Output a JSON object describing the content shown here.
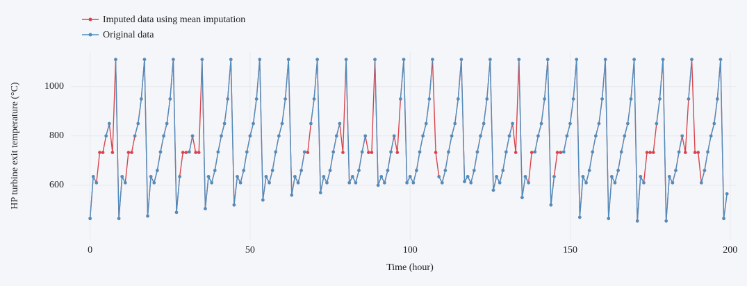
{
  "chart_data": {
    "type": "line",
    "x_label": "Time (hour)",
    "y_label": "HP turbine exit temperature (°C)",
    "x": [
      0,
      1,
      2,
      3,
      4,
      5,
      6,
      7,
      8,
      9,
      10,
      11,
      12,
      13,
      14,
      15,
      16,
      17,
      18,
      19,
      20,
      21,
      22,
      23,
      24,
      25,
      26,
      27,
      28,
      29,
      30,
      31,
      32,
      33,
      34,
      35,
      36,
      37,
      38,
      39,
      40,
      41,
      42,
      43,
      44,
      45,
      46,
      47,
      48,
      49,
      50,
      51,
      52,
      53,
      54,
      55,
      56,
      57,
      58,
      59,
      60,
      61,
      62,
      63,
      64,
      65,
      66,
      67,
      68,
      69,
      70,
      71,
      72,
      73,
      74,
      75,
      76,
      77,
      78,
      79,
      80,
      81,
      82,
      83,
      84,
      85,
      86,
      87,
      88,
      89,
      90,
      91,
      92,
      93,
      94,
      95,
      96,
      97,
      98,
      99,
      100,
      101,
      102,
      103,
      104,
      105,
      106,
      107,
      108,
      109,
      110,
      111,
      112,
      113,
      114,
      115,
      116,
      117,
      118,
      119,
      120,
      121,
      122,
      123,
      124,
      125,
      126,
      127,
      128,
      129,
      130,
      131,
      132,
      133,
      134,
      135,
      136,
      137,
      138,
      139,
      140,
      141,
      142,
      143,
      144,
      145,
      146,
      147,
      148,
      149,
      150,
      151,
      152,
      153,
      154,
      155,
      156,
      157,
      158,
      159,
      160,
      161,
      162,
      163,
      164,
      165,
      166,
      167,
      168,
      169,
      170,
      171,
      172,
      173,
      174,
      175,
      176,
      177,
      178,
      179,
      180,
      181,
      182,
      183,
      184,
      185,
      186,
      187,
      188,
      189,
      190,
      191,
      192,
      193,
      194,
      195,
      196,
      197,
      198,
      199
    ],
    "series": [
      {
        "name": "Imputed data using mean imputation",
        "color": "#d9434b",
        "values": [
          465,
          635,
          610,
          733,
          733,
          800,
          850,
          733,
          1110,
          465,
          635,
          610,
          733,
          733,
          800,
          850,
          950,
          1110,
          475,
          635,
          610,
          660,
          735,
          800,
          850,
          950,
          1110,
          490,
          635,
          733,
          733,
          735,
          800,
          733,
          733,
          1110,
          505,
          635,
          610,
          660,
          735,
          800,
          850,
          950,
          1110,
          520,
          635,
          610,
          660,
          735,
          800,
          850,
          950,
          1110,
          540,
          635,
          610,
          660,
          735,
          800,
          850,
          950,
          1110,
          560,
          635,
          610,
          660,
          735,
          733,
          850,
          950,
          1110,
          570,
          635,
          610,
          660,
          735,
          800,
          850,
          733,
          1110,
          610,
          635,
          610,
          660,
          735,
          800,
          733,
          733,
          1110,
          600,
          635,
          610,
          660,
          735,
          800,
          733,
          950,
          1110,
          610,
          635,
          610,
          660,
          735,
          800,
          850,
          950,
          1110,
          733,
          635,
          610,
          660,
          735,
          800,
          850,
          950,
          1110,
          615,
          635,
          610,
          660,
          735,
          800,
          850,
          950,
          1110,
          580,
          635,
          610,
          660,
          735,
          800,
          850,
          733,
          1110,
          550,
          635,
          610,
          733,
          735,
          800,
          850,
          950,
          1110,
          520,
          635,
          733,
          733,
          735,
          800,
          850,
          950,
          1110,
          470,
          635,
          610,
          660,
          735,
          800,
          850,
          950,
          1110,
          465,
          635,
          610,
          660,
          735,
          800,
          850,
          950,
          1110,
          455,
          635,
          610,
          733,
          733,
          733,
          850,
          950,
          1110,
          455,
          635,
          610,
          660,
          735,
          800,
          733,
          950,
          1110,
          733,
          733,
          610,
          660,
          735,
          800,
          850,
          950,
          1110,
          465,
          565
        ]
      },
      {
        "name": "Original data",
        "color": "#4f8dbd",
        "values": [
          465,
          635,
          610,
          null,
          null,
          800,
          850,
          null,
          1110,
          465,
          635,
          610,
          null,
          null,
          800,
          850,
          950,
          1110,
          475,
          635,
          610,
          660,
          735,
          800,
          850,
          950,
          1110,
          490,
          635,
          null,
          null,
          735,
          800,
          null,
          null,
          1110,
          505,
          635,
          610,
          660,
          735,
          800,
          850,
          950,
          1110,
          520,
          635,
          610,
          660,
          735,
          800,
          850,
          950,
          1110,
          540,
          635,
          610,
          660,
          735,
          800,
          850,
          950,
          1110,
          560,
          635,
          610,
          660,
          735,
          null,
          850,
          950,
          1110,
          570,
          635,
          610,
          660,
          735,
          800,
          850,
          null,
          1110,
          610,
          635,
          610,
          660,
          735,
          800,
          null,
          null,
          1110,
          600,
          635,
          610,
          660,
          735,
          800,
          null,
          950,
          1110,
          610,
          635,
          610,
          660,
          735,
          800,
          850,
          950,
          1110,
          null,
          635,
          610,
          660,
          735,
          800,
          850,
          950,
          1110,
          615,
          635,
          610,
          660,
          735,
          800,
          850,
          950,
          1110,
          580,
          635,
          610,
          660,
          735,
          800,
          850,
          null,
          1110,
          550,
          635,
          610,
          null,
          735,
          800,
          850,
          950,
          1110,
          520,
          635,
          null,
          null,
          735,
          800,
          850,
          950,
          1110,
          470,
          635,
          610,
          660,
          735,
          800,
          850,
          950,
          1110,
          465,
          635,
          610,
          660,
          735,
          800,
          850,
          950,
          1110,
          455,
          635,
          610,
          null,
          null,
          null,
          850,
          950,
          1110,
          455,
          635,
          610,
          660,
          735,
          800,
          null,
          950,
          1110,
          null,
          null,
          610,
          660,
          735,
          800,
          850,
          950,
          1110,
          465,
          565
        ]
      }
    ],
    "xlim": [
      -6,
      202
    ],
    "ylim": [
      380,
      1140
    ],
    "xticks": [
      0,
      50,
      100,
      150,
      200
    ],
    "yticks": [
      600,
      800,
      1000
    ],
    "grid": true,
    "legend": "upper left"
  }
}
